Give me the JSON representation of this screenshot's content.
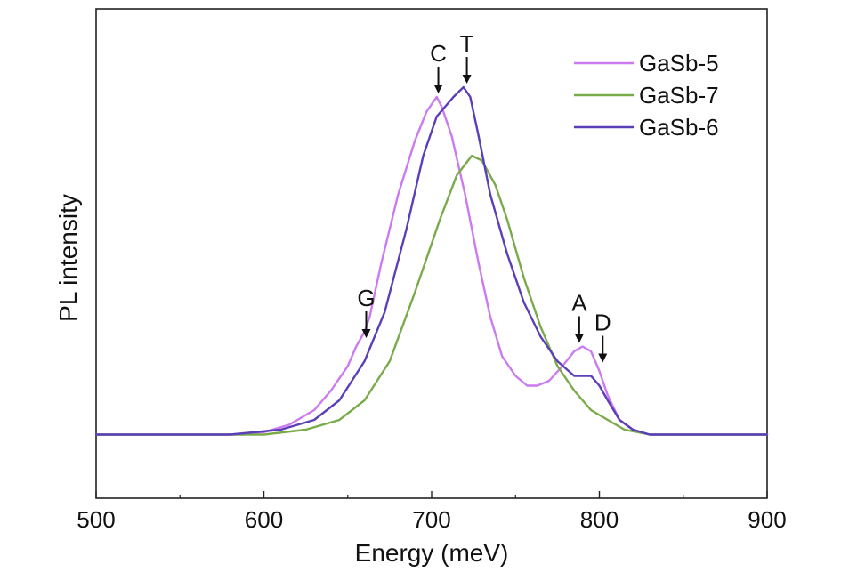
{
  "chart_data": {
    "type": "line",
    "title": "",
    "xlabel": "Energy (meV)",
    "ylabel": "PL intensity",
    "xlim": [
      500,
      900
    ],
    "ylim": [
      0,
      1
    ],
    "xticks": [
      500,
      600,
      700,
      800,
      900
    ],
    "grid": false,
    "legend_position": "top-right",
    "series": [
      {
        "name": "GaSb-5",
        "color": "#cc7af0",
        "x": [
          500,
          580,
          600,
          615,
          630,
          640,
          650,
          655,
          660,
          663,
          670,
          680,
          690,
          697,
          703,
          706,
          712,
          720,
          728,
          735,
          742,
          750,
          757,
          763,
          770,
          778,
          785,
          790,
          795,
          800,
          805,
          812,
          820,
          830,
          845,
          870,
          900
        ],
        "y": [
          0.13,
          0.13,
          0.135,
          0.15,
          0.18,
          0.22,
          0.27,
          0.31,
          0.34,
          0.37,
          0.48,
          0.62,
          0.73,
          0.79,
          0.82,
          0.8,
          0.74,
          0.62,
          0.48,
          0.37,
          0.29,
          0.25,
          0.23,
          0.23,
          0.24,
          0.27,
          0.3,
          0.31,
          0.3,
          0.26,
          0.21,
          0.16,
          0.14,
          0.13,
          0.13,
          0.13,
          0.13
        ]
      },
      {
        "name": "GaSb-7",
        "color": "#7aab4a",
        "x": [
          500,
          600,
          625,
          645,
          660,
          675,
          690,
          705,
          715,
          724,
          730,
          738,
          745,
          755,
          765,
          775,
          785,
          795,
          805,
          815,
          830,
          850,
          900
        ],
        "y": [
          0.13,
          0.13,
          0.14,
          0.16,
          0.2,
          0.28,
          0.42,
          0.57,
          0.66,
          0.7,
          0.69,
          0.64,
          0.57,
          0.45,
          0.35,
          0.27,
          0.22,
          0.18,
          0.16,
          0.14,
          0.13,
          0.13,
          0.13
        ]
      },
      {
        "name": "GaSb-6",
        "color": "#5a3fb8",
        "x": [
          500,
          580,
          610,
          630,
          645,
          660,
          672,
          685,
          695,
          703,
          708,
          713,
          719,
          723,
          728,
          735,
          745,
          755,
          765,
          775,
          785,
          795,
          800,
          805,
          812,
          820,
          830,
          850,
          900
        ],
        "y": [
          0.13,
          0.13,
          0.14,
          0.16,
          0.2,
          0.28,
          0.38,
          0.55,
          0.7,
          0.78,
          0.8,
          0.82,
          0.84,
          0.82,
          0.74,
          0.62,
          0.5,
          0.4,
          0.33,
          0.28,
          0.25,
          0.25,
          0.23,
          0.2,
          0.16,
          0.14,
          0.13,
          0.13,
          0.13
        ]
      }
    ],
    "annotations": [
      {
        "label": "G",
        "x": 661,
        "y": 0.32
      },
      {
        "label": "C",
        "x": 704,
        "y": 0.82
      },
      {
        "label": "T",
        "x": 721,
        "y": 0.84
      },
      {
        "label": "A",
        "x": 788,
        "y": 0.31
      },
      {
        "label": "D",
        "x": 802,
        "y": 0.27
      }
    ]
  }
}
